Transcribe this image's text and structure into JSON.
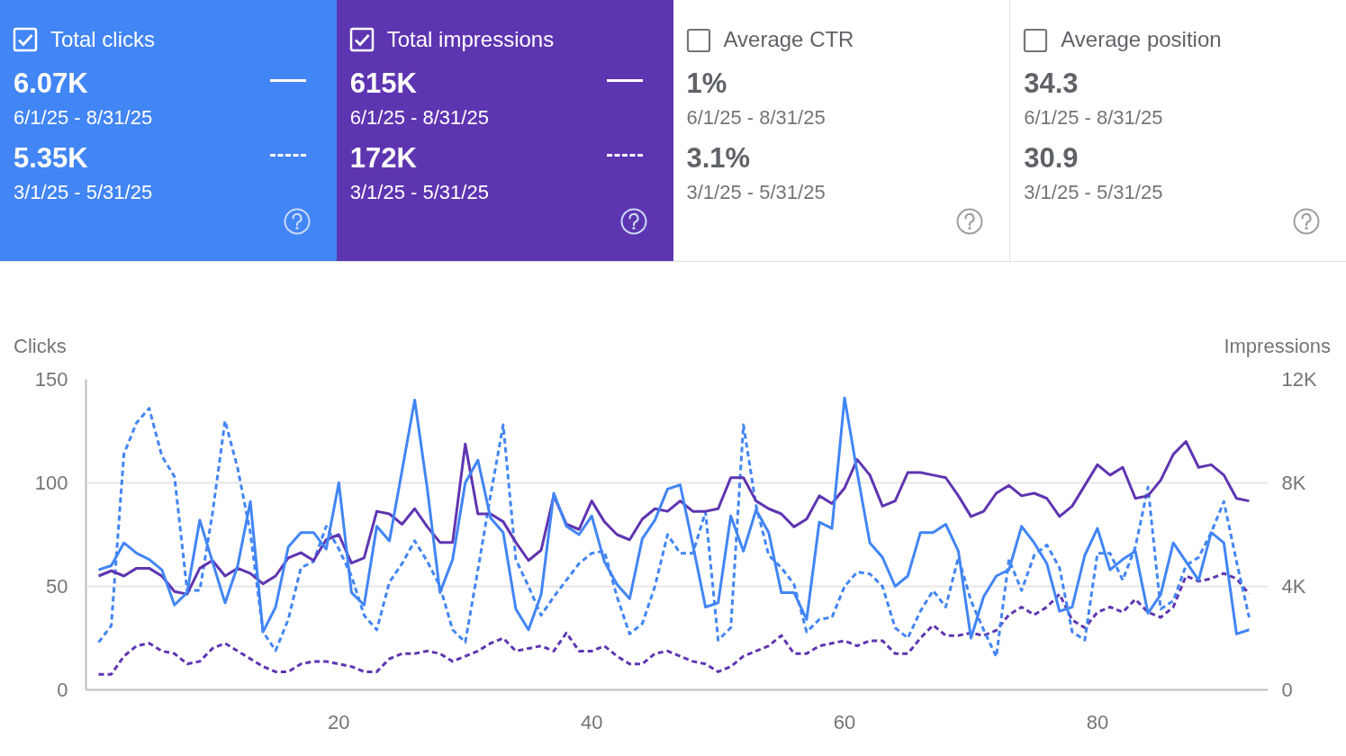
{
  "chart_data": [
    {
      "type": "other",
      "title": "Total clicks",
      "color": "#4285f4",
      "annotations": [
        "6.07K",
        "6/1/25 - 8/31/25",
        "5.35K",
        "3/1/25 - 5/31/25"
      ]
    },
    {
      "type": "other",
      "title": "Total impressions",
      "color": "#5e35b1",
      "annotations": [
        "615K",
        "6/1/25 - 8/31/25",
        "172K",
        "3/1/25 - 5/31/25"
      ]
    },
    {
      "type": "other",
      "title": "Average CTR",
      "annotations": [
        "1%",
        "6/1/25 - 8/31/25",
        "3.1%",
        "3/1/25 - 5/31/25"
      ]
    },
    {
      "type": "other",
      "title": "Average position",
      "annotations": [
        "34.3",
        "6/1/25 - 8/31/25",
        "30.9",
        "3/1/25 - 5/31/25"
      ]
    },
    {
      "type": "line",
      "ylabel": "Clicks",
      "y2label": "Impressions",
      "grid": "y",
      "x": [
        1,
        2,
        3,
        4,
        5,
        6,
        7,
        8,
        9,
        10,
        11,
        12,
        13,
        14,
        15,
        16,
        17,
        18,
        19,
        20,
        21,
        22,
        23,
        24,
        25,
        26,
        27,
        28,
        29,
        30,
        31,
        32,
        33,
        34,
        35,
        36,
        37,
        38,
        39,
        40,
        41,
        42,
        43,
        44,
        45,
        46,
        47,
        48,
        49,
        50,
        51,
        52,
        53,
        54,
        55,
        56,
        57,
        58,
        59,
        60,
        61,
        62,
        63,
        64,
        65,
        66,
        67,
        68,
        69,
        70,
        71,
        72,
        73,
        74,
        75,
        76,
        77,
        78,
        79,
        80,
        81,
        82,
        83,
        84,
        85,
        86,
        87,
        88,
        89,
        90,
        91,
        92
      ],
      "xlim": [
        0,
        93.5
      ],
      "xticks": [
        20,
        40,
        60,
        80
      ],
      "ylim": [
        0,
        150
      ],
      "yticks": [
        0,
        50,
        100,
        150
      ],
      "y2lim": [
        0,
        12000
      ],
      "y2ticks": [
        0,
        {
          "value": 4000,
          "label": "4K"
        },
        {
          "value": 8000,
          "label": "8K"
        },
        {
          "value": 12000,
          "label": "12K"
        }
      ],
      "series": [
        {
          "color": "#5e35b1",
          "axis": "y2",
          "line_style": "dashed",
          "values": [
            600,
            600,
            1300,
            1700,
            1800,
            1500,
            1400,
            1000,
            1100,
            1600,
            1800,
            1500,
            1200,
            900,
            700,
            700,
            1000,
            1100,
            1100,
            1000,
            900,
            700,
            700,
            1200,
            1400,
            1400,
            1500,
            1400,
            1100,
            1300,
            1500,
            1800,
            2000,
            1500,
            1600,
            1700,
            1500,
            2200,
            1500,
            1500,
            1700,
            1300,
            1000,
            1000,
            1400,
            1500,
            1300,
            1100,
            1000,
            700,
            900,
            1300,
            1500,
            1700,
            2100,
            1400,
            1400,
            1700,
            1800,
            1900,
            1700,
            1900,
            1900,
            1400,
            1400,
            2000,
            2500,
            2100,
            2100,
            2200,
            2100,
            2300,
            2900,
            3200,
            2900,
            3200,
            3700,
            2700,
            2400,
            3000,
            3200,
            3000,
            3500,
            3000,
            2800,
            3200,
            4400,
            4200,
            4300,
            4500,
            4300,
            3700
          ]
        },
        {
          "color": "#4285f4",
          "line_style": "dashed",
          "values": [
            23,
            31,
            114,
            129,
            136,
            113,
            103,
            48,
            48,
            85,
            130,
            107,
            76,
            28,
            19,
            34,
            59,
            62,
            79,
            68,
            55,
            36,
            29,
            52,
            61,
            72,
            62,
            50,
            29,
            23,
            58,
            94,
            128,
            63,
            50,
            36,
            45,
            53,
            61,
            66,
            67,
            45,
            27,
            32,
            50,
            75,
            66,
            66,
            86,
            24,
            30,
            128,
            89,
            65,
            59,
            51,
            28,
            34,
            35,
            50,
            57,
            56,
            50,
            30,
            25,
            38,
            48,
            40,
            64,
            43,
            29,
            16,
            63,
            48,
            65,
            70,
            59,
            28,
            24,
            66,
            66,
            53,
            69,
            98,
            39,
            43,
            60,
            64,
            76,
            91,
            62,
            35
          ]
        },
        {
          "color": "#5e35b1",
          "axis": "y2",
          "line_style": "solid",
          "values": [
            4400,
            4600,
            4400,
            4700,
            4700,
            4400,
            3800,
            3700,
            4700,
            5000,
            4400,
            4700,
            4500,
            4100,
            4400,
            5100,
            5300,
            5000,
            5800,
            6000,
            4900,
            5100,
            6900,
            6800,
            6400,
            7000,
            6300,
            5700,
            5700,
            9500,
            6800,
            6800,
            6500,
            5700,
            5000,
            5400,
            7500,
            6400,
            6200,
            7300,
            6500,
            6000,
            5800,
            6600,
            7000,
            6900,
            7300,
            6900,
            6900,
            7000,
            8200,
            8200,
            7300,
            7000,
            6800,
            6300,
            6600,
            7500,
            7200,
            7800,
            8900,
            8300,
            7100,
            7300,
            8400,
            8400,
            8300,
            8200,
            7500,
            6700,
            6900,
            7600,
            7900,
            7500,
            7600,
            7400,
            6700,
            7100,
            7900,
            8700,
            8300,
            8600,
            7400,
            7500,
            8100,
            9100,
            9600,
            8600,
            8700,
            8300,
            7400,
            7300
          ]
        },
        {
          "color": "#4285f4",
          "line_style": "solid",
          "values": [
            58,
            60,
            71,
            66,
            63,
            58,
            41,
            47,
            82,
            62,
            42,
            60,
            91,
            28,
            40,
            69,
            76,
            76,
            68,
            100,
            47,
            41,
            79,
            72,
            106,
            140,
            97,
            47,
            63,
            100,
            111,
            83,
            76,
            39,
            29,
            46,
            95,
            79,
            75,
            84,
            62,
            51,
            44,
            73,
            82,
            97,
            99,
            70,
            40,
            42,
            84,
            67,
            87,
            76,
            47,
            47,
            34,
            81,
            78,
            141,
            105,
            71,
            64,
            50,
            55,
            76,
            76,
            80,
            67,
            25,
            45,
            55,
            58,
            79,
            71,
            61,
            38,
            40,
            65,
            78,
            58,
            63,
            67,
            37,
            46,
            71,
            62,
            53,
            76,
            71,
            27,
            29
          ]
        }
      ]
    }
  ]
}
